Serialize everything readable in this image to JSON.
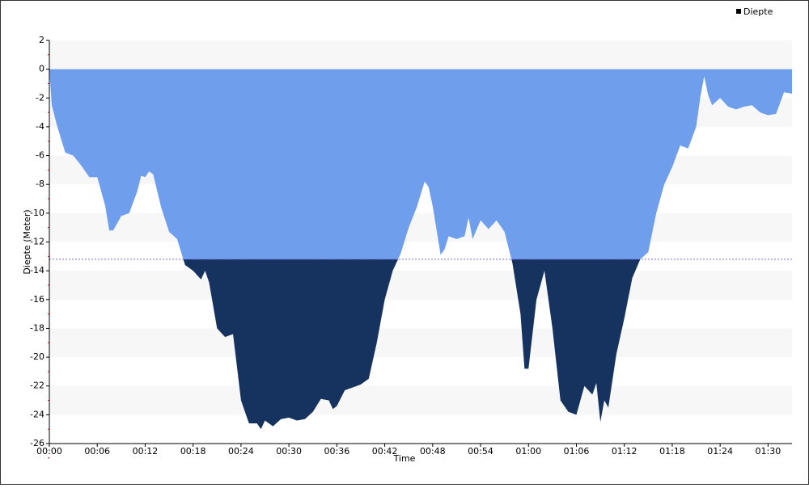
{
  "chart_data": {
    "type": "area",
    "series": [
      {
        "name": "Diepte",
        "color": "#6f9fec",
        "below_color": "#16325f",
        "x": [
          0,
          0.3,
          1,
          2,
          3,
          4,
          5,
          6,
          7,
          7.5,
          8,
          9,
          10,
          11,
          11.5,
          12,
          12.5,
          13,
          14,
          15,
          16,
          17,
          18,
          19,
          19.5,
          20,
          21,
          22,
          23,
          24,
          25,
          26,
          26.5,
          27,
          28,
          29,
          30,
          31,
          32,
          33,
          34,
          35,
          35.5,
          36,
          37,
          38,
          39,
          40,
          41,
          42,
          43,
          44,
          45,
          46,
          47,
          47.5,
          48,
          49,
          49.5,
          50,
          51,
          52,
          52.5,
          53,
          54,
          55,
          56,
          57,
          58,
          59,
          59.5,
          60,
          61,
          62,
          63,
          64,
          65,
          66,
          67,
          68,
          68.5,
          69,
          69.5,
          70,
          71,
          72,
          73,
          74,
          75,
          76,
          77,
          78,
          79,
          80,
          81,
          81.5,
          82,
          82.5,
          83,
          84,
          85,
          86,
          87,
          88,
          89,
          90,
          91,
          92,
          93
        ],
        "values": [
          0,
          -2.5,
          -4,
          -5.8,
          -6,
          -6.7,
          -7.5,
          -7.5,
          -9.5,
          -11.2,
          -11.2,
          -10.2,
          -10,
          -8.5,
          -7.4,
          -7.5,
          -7.1,
          -7.3,
          -9.6,
          -11.3,
          -11.8,
          -13.6,
          -14,
          -14.6,
          -14,
          -14.8,
          -18,
          -18.6,
          -18.4,
          -23,
          -24.6,
          -24.6,
          -25,
          -24.4,
          -24.8,
          -24.3,
          -24.2,
          -24.4,
          -24.3,
          -23.8,
          -22.9,
          -23,
          -23.6,
          -23.4,
          -22.3,
          -22.1,
          -21.9,
          -21.5,
          -19,
          -16,
          -14,
          -12.8,
          -11,
          -9.6,
          -7.8,
          -8.2,
          -9.5,
          -12.9,
          -12.5,
          -11.6,
          -11.8,
          -11.6,
          -10.3,
          -11.8,
          -10.5,
          -11.1,
          -10.5,
          -11.3,
          -13.5,
          -17,
          -20.8,
          -20.8,
          -16,
          -14,
          -18,
          -23,
          -23.8,
          -24,
          -22,
          -22.6,
          -21.8,
          -24.5,
          -23,
          -23.5,
          -19.8,
          -17.3,
          -14.5,
          -13.2,
          -12.7,
          -10,
          -8,
          -6.8,
          -5.3,
          -5.5,
          -4,
          -2,
          -0.5,
          -1.8,
          -2.5,
          -2,
          -2.6,
          -2.8,
          -2.6,
          -2.5,
          -3,
          -3.2,
          -3.1,
          -1.6,
          -1.7
        ]
      }
    ],
    "reference_line": -13.2,
    "y_label": "Diepte (Meter)",
    "x_label": "Time",
    "xlim": [
      0,
      93
    ],
    "ylim": [
      -26,
      2
    ],
    "xticks": [
      {
        "value": 0,
        "label": "00:00"
      },
      {
        "value": 6,
        "label": "00:06"
      },
      {
        "value": 12,
        "label": "00:12"
      },
      {
        "value": 18,
        "label": "00:18"
      },
      {
        "value": 24,
        "label": "00:24"
      },
      {
        "value": 30,
        "label": "00:30"
      },
      {
        "value": 36,
        "label": "00:36"
      },
      {
        "value": 42,
        "label": "00:42"
      },
      {
        "value": 48,
        "label": "00:48"
      },
      {
        "value": 54,
        "label": "00:54"
      },
      {
        "value": 60,
        "label": "01:00"
      },
      {
        "value": 66,
        "label": "01:06"
      },
      {
        "value": 72,
        "label": "01:12"
      },
      {
        "value": 78,
        "label": "01:18"
      },
      {
        "value": 84,
        "label": "01:24"
      },
      {
        "value": 90,
        "label": "01:30"
      }
    ],
    "yticks": [
      2,
      0,
      -2,
      -4,
      -6,
      -8,
      -10,
      -12,
      -14,
      -16,
      -18,
      -20,
      -22,
      -24,
      -26
    ],
    "legend": "top-right",
    "grid": "bands"
  }
}
